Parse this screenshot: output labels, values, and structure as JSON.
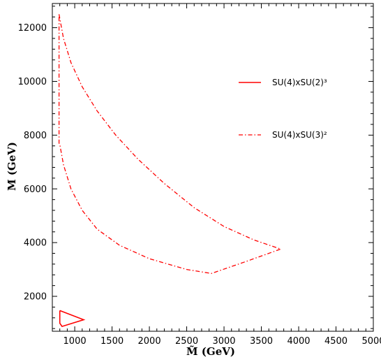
{
  "chart_data": {
    "type": "line",
    "xlabel": "M̃ (GeV)",
    "ylabel": "M (GeV)",
    "xlim": [
      700,
      5000
    ],
    "ylim": [
      700,
      12900
    ],
    "x_ticks": [
      1000,
      1500,
      2000,
      2500,
      3000,
      3500,
      4000,
      4500,
      5000
    ],
    "y_ticks": [
      2000,
      4000,
      6000,
      8000,
      10000,
      12000
    ],
    "x_tick_labels": [
      "1000",
      "1500",
      "2000",
      "2500",
      "3000",
      "3500",
      "4000",
      "4500",
      "5000"
    ],
    "y_tick_labels": [
      "2000",
      "4000",
      "6000",
      "8000",
      "10000",
      "12000"
    ],
    "grid": false,
    "legend_position": "top-right",
    "series": [
      {
        "name": "SU(4)xSU(2)³",
        "line_style": "solid",
        "color": "#ff0000",
        "points": [
          [
            800,
            1470
          ],
          [
            1120,
            1130
          ],
          [
            830,
            880
          ],
          [
            800,
            1000
          ],
          [
            800,
            1470
          ]
        ]
      },
      {
        "name": "SU(4)xSU(3)²",
        "line_style": "dash-dot",
        "color": "#ff0000",
        "points": [
          [
            790,
            12500
          ],
          [
            850,
            11600
          ],
          [
            950,
            10700
          ],
          [
            1100,
            9800
          ],
          [
            1300,
            8900
          ],
          [
            1550,
            8000
          ],
          [
            1850,
            7100
          ],
          [
            2200,
            6200
          ],
          [
            2600,
            5300
          ],
          [
            3000,
            4600
          ],
          [
            3400,
            4100
          ],
          [
            3760,
            3760
          ],
          [
            3300,
            3300
          ],
          [
            2830,
            2850
          ],
          [
            2500,
            3000
          ],
          [
            2000,
            3400
          ],
          [
            1600,
            3900
          ],
          [
            1300,
            4500
          ],
          [
            1100,
            5200
          ],
          [
            950,
            6000
          ],
          [
            850,
            6900
          ],
          [
            800,
            7650
          ],
          [
            790,
            7700
          ],
          [
            790,
            12500
          ]
        ]
      }
    ]
  }
}
